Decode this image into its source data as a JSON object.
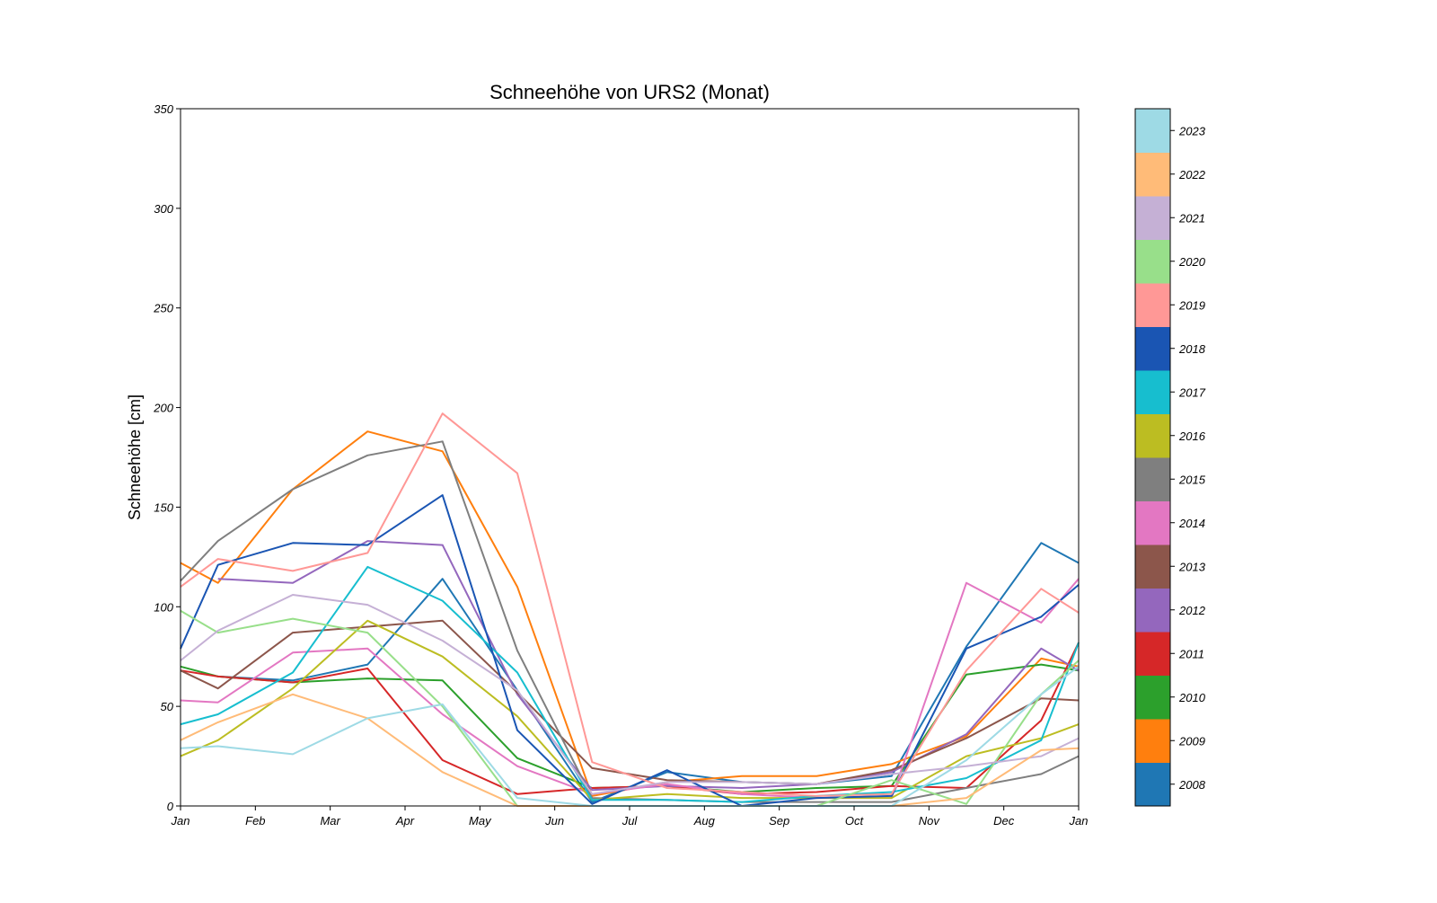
{
  "chart_data": {
    "type": "line",
    "title": "Schneehöhe von URS2 (Monat)",
    "xlabel": "",
    "ylabel": "Schneehöhe [cm]",
    "ylim": [
      0,
      350
    ],
    "yticks": [
      0,
      50,
      100,
      150,
      200,
      250,
      300,
      350
    ],
    "xlim": [
      0,
      12
    ],
    "xticks": [
      0,
      1,
      2,
      3,
      4,
      5,
      6,
      7,
      8,
      9,
      10,
      11,
      12
    ],
    "xtick_labels": [
      "Jan",
      "Feb",
      "Mar",
      "Apr",
      "May",
      "Jun",
      "Jul",
      "Aug",
      "Sep",
      "Oct",
      "Nov",
      "Dec",
      "Jan"
    ],
    "grid": false,
    "legend": "colorbar-right",
    "x": [
      0,
      0.5,
      1.5,
      2.5,
      3.5,
      4.5,
      5.5,
      6.5,
      7.5,
      8.5,
      9.5,
      10.5,
      11.5,
      12
    ],
    "series": [
      {
        "name": "2008",
        "color": "#1f77b4",
        "values": [
          null,
          65,
          63,
          71,
          114,
          58,
          2,
          17,
          12,
          11,
          15,
          80,
          132,
          122
        ]
      },
      {
        "name": "2009",
        "color": "#ff7f0e",
        "values": [
          122,
          112,
          159,
          188,
          178,
          110,
          5,
          12,
          15,
          15,
          21,
          35,
          74,
          70
        ]
      },
      {
        "name": "2010",
        "color": "#2ca02c",
        "values": [
          70,
          65,
          62,
          64,
          63,
          24,
          9,
          10,
          7,
          9,
          10,
          66,
          71,
          68
        ]
      },
      {
        "name": "2011",
        "color": "#d62728",
        "values": [
          68,
          65,
          62,
          69,
          23,
          6,
          9,
          10,
          6,
          7,
          10,
          9,
          43,
          82
        ]
      },
      {
        "name": "2012",
        "color": "#9467bd",
        "values": [
          null,
          114,
          112,
          133,
          131,
          56,
          8,
          10,
          9,
          11,
          17,
          36,
          79,
          68
        ]
      },
      {
        "name": "2013",
        "color": "#8c564b",
        "values": [
          68,
          59,
          87,
          90,
          93,
          57,
          19,
          13,
          12,
          11,
          18,
          34,
          54,
          53
        ]
      },
      {
        "name": "2014",
        "color": "#e377c2",
        "values": [
          53,
          52,
          77,
          79,
          46,
          20,
          6,
          11,
          6,
          4,
          4,
          112,
          92,
          114
        ]
      },
      {
        "name": "2015",
        "color": "#7f7f7f",
        "values": [
          113,
          133,
          159,
          176,
          183,
          78,
          4,
          3,
          2,
          2,
          2,
          9,
          16,
          25
        ]
      },
      {
        "name": "2016",
        "color": "#bcbd22",
        "values": [
          25,
          33,
          59,
          93,
          75,
          45,
          3,
          6,
          4,
          4,
          4,
          25,
          34,
          41
        ]
      },
      {
        "name": "2017",
        "color": "#17becf",
        "values": [
          41,
          46,
          67,
          120,
          103,
          67,
          3,
          3,
          2,
          5,
          7,
          14,
          33,
          82
        ]
      },
      {
        "name": "2018",
        "color": "#1a55b3",
        "values": [
          79,
          121,
          132,
          131,
          156,
          38,
          1,
          18,
          0,
          4,
          5,
          79,
          95,
          111
        ]
      },
      {
        "name": "2019",
        "color": "#ff9896",
        "values": [
          110,
          124,
          118,
          127,
          197,
          167,
          22,
          9,
          7,
          5,
          6,
          68,
          109,
          97
        ]
      },
      {
        "name": "2020",
        "color": "#98df8a",
        "values": [
          98,
          87,
          94,
          87,
          50,
          0,
          0,
          0,
          0,
          0,
          13,
          1,
          56,
          73
        ]
      },
      {
        "name": "2021",
        "color": "#c5b0d5",
        "values": [
          73,
          88,
          106,
          101,
          83,
          58,
          6,
          12,
          12,
          11,
          16,
          20,
          25,
          34
        ]
      },
      {
        "name": "2022",
        "color": "#ffbb78",
        "values": [
          33,
          42,
          56,
          44,
          17,
          0,
          0,
          0,
          0,
          0,
          0,
          4,
          28,
          29
        ]
      },
      {
        "name": "2023",
        "color": "#9edae5",
        "values": [
          29,
          30,
          26,
          44,
          51,
          4,
          0,
          0,
          0,
          0,
          0,
          23,
          56,
          70
        ]
      }
    ]
  }
}
